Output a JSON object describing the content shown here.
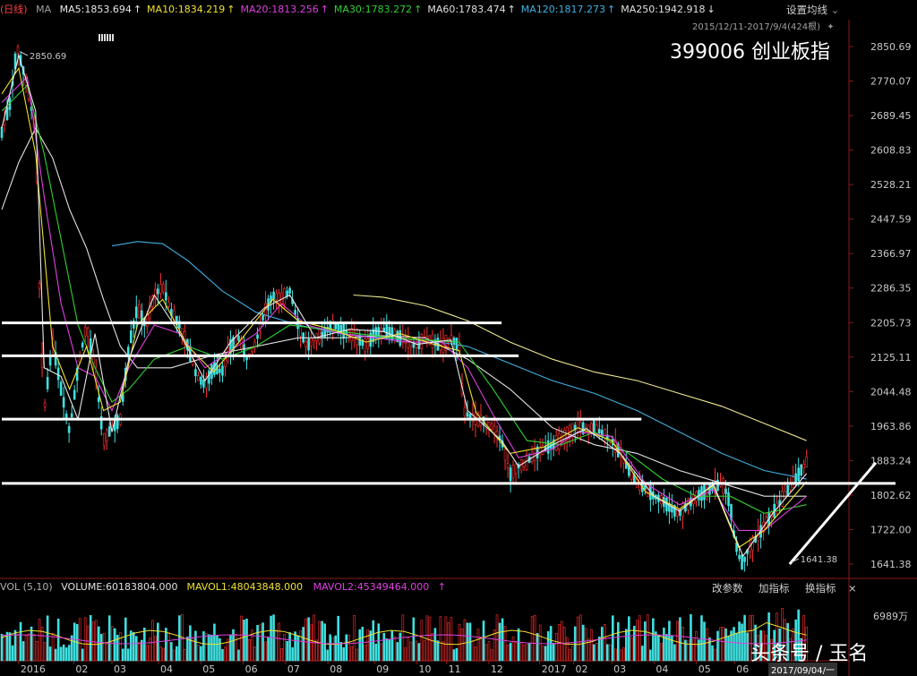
{
  "header": {
    "period": "(日线)",
    "ma_label": "MA",
    "ma_items": [
      {
        "text": "MA5:1853.694",
        "color": "#e8e8e8"
      },
      {
        "text": "MA10:1834.219",
        "color": "#f0e030"
      },
      {
        "text": "MA20:1813.256",
        "color": "#e040e0"
      },
      {
        "text": "MA30:1783.272",
        "color": "#30d030"
      },
      {
        "text": "MA60:1783.474",
        "color": "#e0e0e0"
      },
      {
        "text": "MA120:1817.273",
        "color": "#40b0e0"
      },
      {
        "text": "MA250:1942.918",
        "color": "#e0e0e0"
      }
    ],
    "up_arrow": "↑",
    "down_arrow": "↓",
    "settings_label": "设置均线",
    "range_text": "2015/12/11-2017/9/4(424根)",
    "title": "399006 创业板指"
  },
  "volume_header": {
    "label": "VOL (5,10)",
    "volume": "VOLUME:60183804.000",
    "mavol1": "MAVOL1:48043848.000",
    "mavol2": "MAVOL2:45349464.000",
    "buttons": [
      "改参数",
      "加指标",
      "换指标"
    ],
    "close": "×"
  },
  "volume_axis": {
    "label": "6989万"
  },
  "watermark": "头条号 / 玉名",
  "cursor_date": "2017/09/04/一",
  "colors": {
    "up": "#ff3030",
    "down": "#40e0e0",
    "ma5": "#e8e8e8",
    "ma10": "#f0e030",
    "ma20": "#e040e0",
    "ma30": "#30d030",
    "ma60": "#e0e0e0",
    "ma120": "#40b0e0",
    "ma250": "#f0e890",
    "support_lines": "#ffffff"
  },
  "chart_data": {
    "type": "candlestick",
    "title": "399006 创业板指",
    "y_ticks": [
      2850.69,
      2770.07,
      2689.45,
      2608.83,
      2528.21,
      2447.59,
      2366.97,
      2286.35,
      2205.73,
      2125.11,
      2044.48,
      1963.86,
      1883.24,
      1802.62,
      1722.0,
      1641.38
    ],
    "y_tick_labels": [
      "2850.69",
      "2770.07",
      "2689.45",
      "2608.83",
      "2528.21",
      "2447.59",
      "2366.97",
      "2286.35",
      "2205.73",
      "2125.11",
      "2044.48",
      "1963.86",
      "1883.24",
      "1802.62",
      "1722.00",
      "1641.38"
    ],
    "ylim": [
      1641.38,
      2850.69
    ],
    "x_ticks": [
      {
        "label": "2016",
        "t": 0.02
      },
      {
        "label": "02",
        "t": 0.085
      },
      {
        "label": "03",
        "t": 0.13
      },
      {
        "label": "04",
        "t": 0.185
      },
      {
        "label": "05",
        "t": 0.235
      },
      {
        "label": "06",
        "t": 0.285
      },
      {
        "label": "07",
        "t": 0.335
      },
      {
        "label": "08",
        "t": 0.385
      },
      {
        "label": "09",
        "t": 0.44
      },
      {
        "label": "10",
        "t": 0.49
      },
      {
        "label": "11",
        "t": 0.525
      },
      {
        "label": "12",
        "t": 0.575
      },
      {
        "label": "2017",
        "t": 0.635
      },
      {
        "label": "02",
        "t": 0.675
      },
      {
        "label": "03",
        "t": 0.72
      },
      {
        "label": "04",
        "t": 0.77
      },
      {
        "label": "05",
        "t": 0.82
      },
      {
        "label": "06",
        "t": 0.865
      }
    ],
    "annotations": [
      {
        "text": "2850.69",
        "value": 2850.69,
        "t": 0.02
      },
      {
        "text": "1641.38",
        "value": 1641.38,
        "t": 0.93
      }
    ],
    "support_levels": [
      2205.0,
      2128.0,
      1980.0,
      1830.0
    ],
    "trend_line": {
      "from": {
        "t": 0.93,
        "value": 1641.38
      },
      "to": {
        "t": 1.04,
        "value": 1920.0
      }
    },
    "price_path": [
      [
        0.0,
        2650
      ],
      [
        0.01,
        2720
      ],
      [
        0.018,
        2850.69
      ],
      [
        0.03,
        2760
      ],
      [
        0.04,
        2650
      ],
      [
        0.045,
        2250
      ],
      [
        0.05,
        2000
      ],
      [
        0.06,
        2160
      ],
      [
        0.07,
        2050
      ],
      [
        0.08,
        1950
      ],
      [
        0.09,
        2100
      ],
      [
        0.1,
        2200
      ],
      [
        0.11,
        2100
      ],
      [
        0.12,
        1930
      ],
      [
        0.13,
        1960
      ],
      [
        0.14,
        1980
      ],
      [
        0.15,
        2150
      ],
      [
        0.16,
        2240
      ],
      [
        0.17,
        2200
      ],
      [
        0.18,
        2270
      ],
      [
        0.19,
        2290
      ],
      [
        0.2,
        2230
      ],
      [
        0.21,
        2200
      ],
      [
        0.22,
        2150
      ],
      [
        0.23,
        2080
      ],
      [
        0.24,
        2060
      ],
      [
        0.25,
        2100
      ],
      [
        0.26,
        2090
      ],
      [
        0.27,
        2150
      ],
      [
        0.28,
        2170
      ],
      [
        0.29,
        2120
      ],
      [
        0.3,
        2160
      ],
      [
        0.31,
        2230
      ],
      [
        0.32,
        2270
      ],
      [
        0.33,
        2260
      ],
      [
        0.34,
        2280
      ],
      [
        0.35,
        2200
      ],
      [
        0.36,
        2150
      ],
      [
        0.37,
        2170
      ],
      [
        0.38,
        2180
      ],
      [
        0.39,
        2200
      ],
      [
        0.4,
        2190
      ],
      [
        0.41,
        2180
      ],
      [
        0.42,
        2170
      ],
      [
        0.43,
        2150
      ],
      [
        0.44,
        2180
      ],
      [
        0.45,
        2190
      ],
      [
        0.46,
        2180
      ],
      [
        0.47,
        2170
      ],
      [
        0.48,
        2160
      ],
      [
        0.49,
        2150
      ],
      [
        0.5,
        2170
      ],
      [
        0.51,
        2160
      ],
      [
        0.52,
        2150
      ],
      [
        0.53,
        2170
      ],
      [
        0.54,
        2150
      ],
      [
        0.545,
        2000
      ],
      [
        0.55,
        1990
      ],
      [
        0.56,
        1980
      ],
      [
        0.57,
        1975
      ],
      [
        0.58,
        1960
      ],
      [
        0.59,
        1930
      ],
      [
        0.6,
        1850
      ],
      [
        0.61,
        1870
      ],
      [
        0.62,
        1880
      ],
      [
        0.63,
        1900
      ],
      [
        0.64,
        1910
      ],
      [
        0.65,
        1920
      ],
      [
        0.66,
        1930
      ],
      [
        0.67,
        1950
      ],
      [
        0.68,
        1965
      ],
      [
        0.69,
        1955
      ],
      [
        0.7,
        1960
      ],
      [
        0.71,
        1945
      ],
      [
        0.72,
        1930
      ],
      [
        0.73,
        1900
      ],
      [
        0.74,
        1860
      ],
      [
        0.75,
        1830
      ],
      [
        0.76,
        1820
      ],
      [
        0.77,
        1800
      ],
      [
        0.78,
        1790
      ],
      [
        0.79,
        1770
      ],
      [
        0.8,
        1760
      ],
      [
        0.81,
        1780
      ],
      [
        0.82,
        1800
      ],
      [
        0.83,
        1810
      ],
      [
        0.84,
        1820
      ],
      [
        0.85,
        1830
      ],
      [
        0.855,
        1810
      ],
      [
        0.86,
        1780
      ],
      [
        0.865,
        1700
      ],
      [
        0.87,
        1660
      ],
      [
        0.875,
        1641.38
      ],
      [
        0.88,
        1670
      ],
      [
        0.89,
        1700
      ],
      [
        0.9,
        1730
      ],
      [
        0.91,
        1760
      ],
      [
        0.92,
        1790
      ],
      [
        0.93,
        1820
      ],
      [
        0.94,
        1850
      ],
      [
        0.95,
        1880
      ]
    ],
    "ma_lines": {
      "ma250": [
        [
          0.415,
          2270
        ],
        [
          0.45,
          2265
        ],
        [
          0.5,
          2245
        ],
        [
          0.55,
          2210
        ],
        [
          0.6,
          2160
        ],
        [
          0.65,
          2120
        ],
        [
          0.7,
          2090
        ],
        [
          0.75,
          2070
        ],
        [
          0.8,
          2040
        ],
        [
          0.85,
          2010
        ],
        [
          0.9,
          1970
        ],
        [
          0.95,
          1930
        ]
      ],
      "ma120": [
        [
          0.13,
          2385
        ],
        [
          0.16,
          2395
        ],
        [
          0.19,
          2390
        ],
        [
          0.22,
          2350
        ],
        [
          0.26,
          2280
        ],
        [
          0.3,
          2230
        ],
        [
          0.35,
          2200
        ],
        [
          0.4,
          2180
        ],
        [
          0.45,
          2170
        ],
        [
          0.5,
          2165
        ],
        [
          0.55,
          2150
        ],
        [
          0.6,
          2110
        ],
        [
          0.65,
          2070
        ],
        [
          0.7,
          2040
        ],
        [
          0.75,
          2000
        ],
        [
          0.8,
          1950
        ],
        [
          0.85,
          1900
        ],
        [
          0.9,
          1860
        ],
        [
          0.95,
          1840
        ]
      ],
      "ma60": [
        [
          0.0,
          2470
        ],
        [
          0.02,
          2580
        ],
        [
          0.04,
          2660
        ],
        [
          0.06,
          2590
        ],
        [
          0.08,
          2470
        ],
        [
          0.1,
          2380
        ],
        [
          0.12,
          2260
        ],
        [
          0.14,
          2150
        ],
        [
          0.16,
          2100
        ],
        [
          0.2,
          2100
        ],
        [
          0.25,
          2130
        ],
        [
          0.3,
          2150
        ],
        [
          0.35,
          2170
        ],
        [
          0.4,
          2170
        ],
        [
          0.45,
          2175
        ],
        [
          0.5,
          2170
        ],
        [
          0.55,
          2120
        ],
        [
          0.6,
          2050
        ],
        [
          0.65,
          1960
        ],
        [
          0.7,
          1920
        ],
        [
          0.75,
          1900
        ],
        [
          0.8,
          1860
        ],
        [
          0.85,
          1830
        ],
        [
          0.9,
          1800
        ],
        [
          0.95,
          1800
        ]
      ],
      "ma30": [
        [
          0.0,
          2700
        ],
        [
          0.03,
          2760
        ],
        [
          0.05,
          2600
        ],
        [
          0.07,
          2400
        ],
        [
          0.09,
          2200
        ],
        [
          0.11,
          2100
        ],
        [
          0.13,
          2020
        ],
        [
          0.15,
          2050
        ],
        [
          0.18,
          2120
        ],
        [
          0.22,
          2150
        ],
        [
          0.26,
          2120
        ],
        [
          0.3,
          2150
        ],
        [
          0.34,
          2200
        ],
        [
          0.38,
          2190
        ],
        [
          0.42,
          2180
        ],
        [
          0.46,
          2170
        ],
        [
          0.5,
          2165
        ],
        [
          0.54,
          2160
        ],
        [
          0.58,
          2050
        ],
        [
          0.62,
          1930
        ],
        [
          0.66,
          1920
        ],
        [
          0.7,
          1950
        ],
        [
          0.74,
          1900
        ],
        [
          0.78,
          1840
        ],
        [
          0.82,
          1800
        ],
        [
          0.86,
          1800
        ],
        [
          0.9,
          1760
        ],
        [
          0.95,
          1780
        ]
      ],
      "ma20": [
        [
          0.0,
          2720
        ],
        [
          0.03,
          2780
        ],
        [
          0.05,
          2500
        ],
        [
          0.07,
          2250
        ],
        [
          0.09,
          2100
        ],
        [
          0.11,
          2080
        ],
        [
          0.13,
          2000
        ],
        [
          0.15,
          2100
        ],
        [
          0.18,
          2200
        ],
        [
          0.21,
          2180
        ],
        [
          0.24,
          2100
        ],
        [
          0.27,
          2140
        ],
        [
          0.3,
          2180
        ],
        [
          0.33,
          2250
        ],
        [
          0.36,
          2200
        ],
        [
          0.4,
          2180
        ],
        [
          0.44,
          2170
        ],
        [
          0.48,
          2160
        ],
        [
          0.52,
          2160
        ],
        [
          0.55,
          2100
        ],
        [
          0.58,
          1990
        ],
        [
          0.61,
          1890
        ],
        [
          0.65,
          1910
        ],
        [
          0.68,
          1950
        ],
        [
          0.72,
          1940
        ],
        [
          0.76,
          1830
        ],
        [
          0.8,
          1780
        ],
        [
          0.84,
          1815
        ],
        [
          0.87,
          1720
        ],
        [
          0.9,
          1720
        ],
        [
          0.95,
          1800
        ]
      ],
      "ma10": [
        [
          0.0,
          2740
        ],
        [
          0.02,
          2800
        ],
        [
          0.04,
          2600
        ],
        [
          0.06,
          2150
        ],
        [
          0.08,
          2050
        ],
        [
          0.1,
          2150
        ],
        [
          0.12,
          2000
        ],
        [
          0.14,
          2020
        ],
        [
          0.16,
          2200
        ],
        [
          0.19,
          2260
        ],
        [
          0.22,
          2150
        ],
        [
          0.25,
          2090
        ],
        [
          0.28,
          2160
        ],
        [
          0.32,
          2260
        ],
        [
          0.35,
          2210
        ],
        [
          0.39,
          2190
        ],
        [
          0.43,
          2160
        ],
        [
          0.47,
          2180
        ],
        [
          0.51,
          2155
        ],
        [
          0.54,
          2140
        ],
        [
          0.56,
          1995
        ],
        [
          0.6,
          1900
        ],
        [
          0.64,
          1915
        ],
        [
          0.68,
          1960
        ],
        [
          0.72,
          1930
        ],
        [
          0.76,
          1810
        ],
        [
          0.8,
          1770
        ],
        [
          0.84,
          1825
        ],
        [
          0.87,
          1680
        ],
        [
          0.9,
          1720
        ],
        [
          0.95,
          1834
        ]
      ],
      "ma5": [
        [
          0.0,
          2660
        ],
        [
          0.02,
          2830
        ],
        [
          0.04,
          2700
        ],
        [
          0.05,
          2100
        ],
        [
          0.07,
          2080
        ],
        [
          0.09,
          1980
        ],
        [
          0.11,
          2180
        ],
        [
          0.13,
          1950
        ],
        [
          0.15,
          2120
        ],
        [
          0.18,
          2270
        ],
        [
          0.21,
          2180
        ],
        [
          0.24,
          2070
        ],
        [
          0.27,
          2160
        ],
        [
          0.31,
          2240
        ],
        [
          0.34,
          2270
        ],
        [
          0.37,
          2170
        ],
        [
          0.41,
          2190
        ],
        [
          0.45,
          2185
        ],
        [
          0.49,
          2155
        ],
        [
          0.53,
          2165
        ],
        [
          0.55,
          2000
        ],
        [
          0.59,
          1930
        ],
        [
          0.61,
          1870
        ],
        [
          0.65,
          1920
        ],
        [
          0.69,
          1958
        ],
        [
          0.73,
          1900
        ],
        [
          0.77,
          1800
        ],
        [
          0.8,
          1765
        ],
        [
          0.84,
          1828
        ],
        [
          0.875,
          1660
        ],
        [
          0.91,
          1760
        ],
        [
          0.95,
          1853
        ]
      ]
    }
  }
}
